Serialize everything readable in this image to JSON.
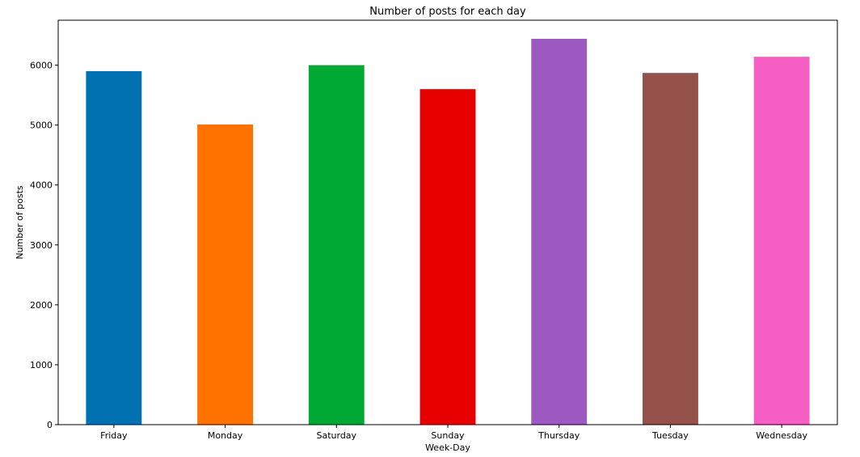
{
  "chart_data": {
    "type": "bar",
    "title": "Number of posts for each day",
    "xlabel": "Week-Day",
    "ylabel": "Number of posts",
    "categories": [
      "Friday",
      "Monday",
      "Saturday",
      "Sunday",
      "Thursday",
      "Tuesday",
      "Wednesday"
    ],
    "values": [
      5900,
      5010,
      6000,
      5600,
      6440,
      5870,
      6140
    ],
    "colors": [
      "#0072b2",
      "#ff7200",
      "#00a933",
      "#e60000",
      "#9b59c1",
      "#935149",
      "#f55fc3"
    ],
    "ylim": [
      0,
      6750
    ],
    "yticks": [
      0,
      1000,
      2000,
      3000,
      4000,
      5000,
      6000
    ],
    "grid": false,
    "legend": "none"
  }
}
